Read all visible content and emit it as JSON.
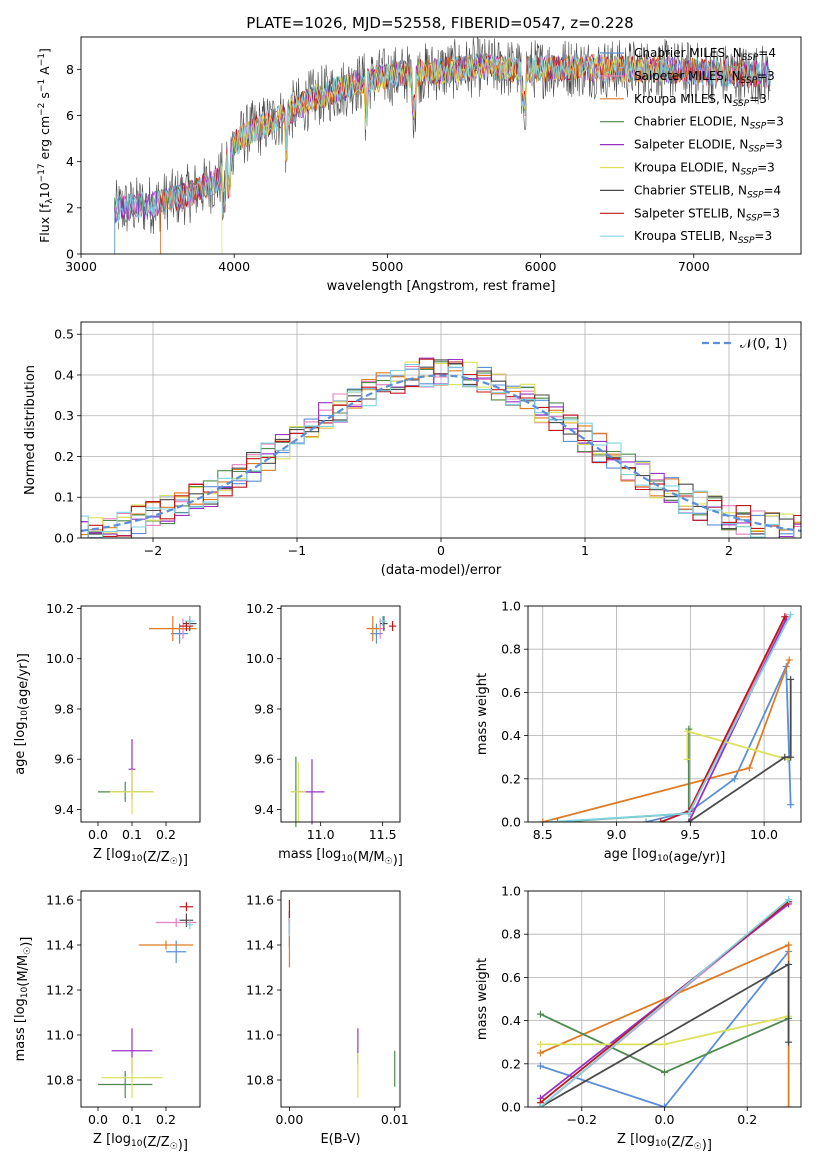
{
  "figure_title": "PLATE=1026, MJD=52558, FIBERID=0547, z=0.228",
  "legend_entries": [
    {
      "name": "Chabrier MILES, N",
      "sub": "SSP",
      "tail": "=4",
      "color": "#5b8fd6"
    },
    {
      "name": "Salpeter MILES, N",
      "sub": "SSP",
      "tail": "=3",
      "color": "#e87fbf"
    },
    {
      "name": "Kroupa MILES, N",
      "sub": "SSP",
      "tail": "=3",
      "color": "#e07b25"
    },
    {
      "name": "Chabrier ELODIE, N",
      "sub": "SSP",
      "tail": "=3",
      "color": "#4e8a4e"
    },
    {
      "name": "Salpeter ELODIE, N",
      "sub": "SSP",
      "tail": "=3",
      "color": "#9b30c8"
    },
    {
      "name": "Kroupa ELODIE, N",
      "sub": "SSP",
      "tail": "=3",
      "color": "#dde05a"
    },
    {
      "name": "Chabrier STELIB, N",
      "sub": "SSP",
      "tail": "=4",
      "color": "#4a4a4a"
    },
    {
      "name": "Salpeter STELIB, N",
      "sub": "SSP",
      "tail": "=3",
      "color": "#c01818"
    },
    {
      "name": "Kroupa STELIB, N",
      "sub": "SSP",
      "tail": "=3",
      "color": "#7fd3e0"
    }
  ],
  "chart_data": [
    {
      "id": "spectrum",
      "type": "line",
      "xlabel": "wavelength [Angstrom, rest frame]",
      "ylabel_main": "Flux [f",
      "ylabel_sub": "λ",
      "ylabel_rest": "10",
      "ylabel_exp": "−17",
      "ylabel_units": " erg cm",
      "ylabel_exp2": "−2",
      "ylabel_units2": " s",
      "ylabel_exp3": "−1",
      "ylabel_units3": " A",
      "ylabel_exp4": "−1",
      "ylabel_close": "]",
      "xlim": [
        3000,
        7700
      ],
      "ylim": [
        0,
        9.4
      ],
      "xticks": [
        3000,
        4000,
        5000,
        6000,
        7000
      ],
      "yticks": [
        0,
        2,
        4,
        6,
        8
      ],
      "continuum": {
        "x": [
          3220,
          3300,
          3500,
          3700,
          3900,
          4000,
          4100,
          4300,
          4500,
          4800,
          5000,
          5300,
          5600,
          5900,
          6200,
          6500,
          6800,
          7000,
          7300,
          7500
        ],
        "y": [
          1.9,
          2.0,
          2.2,
          2.6,
          3.2,
          4.8,
          5.3,
          5.9,
          6.7,
          7.4,
          7.7,
          7.9,
          8.1,
          8.0,
          8.1,
          8.0,
          8.0,
          7.9,
          7.8,
          7.8
        ]
      },
      "noise_amplitude": 0.6
    },
    {
      "id": "residuals",
      "type": "histogram",
      "xlabel": "(data-model)/error",
      "ylabel": "Normed distribution",
      "xlim": [
        -2.5,
        2.5
      ],
      "ylim": [
        0,
        0.53
      ],
      "xticks": [
        -2,
        -1,
        0,
        1,
        2
      ],
      "xticklabels": [
        "−2",
        "−1",
        "0",
        "1",
        "2"
      ],
      "yticks": [
        0.0,
        0.1,
        0.2,
        0.3,
        0.4,
        0.5
      ],
      "yticklabels": [
        "0.0",
        "0.1",
        "0.2",
        "0.3",
        "0.4",
        "0.5"
      ],
      "grid": true,
      "bin_width": 0.1,
      "legend_label": "𝒩(0, 1)",
      "legend_position": "top-right",
      "reference_color": "#5b8fd6"
    },
    {
      "id": "Z-age",
      "type": "scatter",
      "xlabel": "Z [log10(Z/Z☉)]",
      "ylabel": "age  [log10(age/yr)]",
      "xlim": [
        -0.05,
        0.3
      ],
      "ylim": [
        9.35,
        10.21
      ],
      "xticks": [
        0.0,
        0.1,
        0.2
      ],
      "xticklabels": [
        "0.0",
        "0.1",
        "0.2"
      ],
      "yticks": [
        9.4,
        9.6,
        9.8,
        10.0,
        10.2
      ],
      "yticklabels": [
        "9.4",
        "9.6",
        "9.8",
        "10.0",
        "10.2"
      ],
      "points": [
        {
          "s": 0,
          "x": 0.24,
          "y": 10.1,
          "ex": 0.025,
          "ey": 0.04
        },
        {
          "s": 1,
          "x": 0.25,
          "y": 10.12,
          "ex": 0.02,
          "ey": 0.04
        },
        {
          "s": 2,
          "x": 0.22,
          "y": 10.12,
          "ex": 0.07,
          "ey": 0.05
        },
        {
          "s": 3,
          "x": 0.08,
          "y": 9.47,
          "ex": 0.08,
          "ey": 0.04
        },
        {
          "s": 4,
          "x": 0.1,
          "y": 9.56,
          "ex": 0.01,
          "ey": 0.12
        },
        {
          "s": 5,
          "x": 0.1,
          "y": 9.47,
          "ex": 0.065,
          "ey": 0.09
        },
        {
          "s": 6,
          "x": 0.27,
          "y": 10.14,
          "ex": 0.02,
          "ey": 0.03
        },
        {
          "s": 7,
          "x": 0.26,
          "y": 10.13,
          "ex": 0.02,
          "ey": 0.02
        },
        {
          "s": 8,
          "x": 0.27,
          "y": 10.15,
          "ex": 0.015,
          "ey": 0.02
        }
      ]
    },
    {
      "id": "mass-age",
      "type": "scatter",
      "xlabel": "mass [log10(M/M☉)]",
      "ylabel": "",
      "xlim": [
        10.68,
        11.64
      ],
      "ylim": [
        9.35,
        10.21
      ],
      "xticks": [
        11.0,
        11.5
      ],
      "xticklabels": [
        "11.0",
        "11.5"
      ],
      "yticks": [
        9.4,
        9.6,
        9.8,
        10.0,
        10.2
      ],
      "yticklabels": [
        "9.4",
        "9.6",
        "9.8",
        "10.0",
        "10.2"
      ],
      "points": [
        {
          "s": 0,
          "x": 11.45,
          "y": 10.1,
          "ex": 0.05,
          "ey": 0.04
        },
        {
          "s": 1,
          "x": 11.48,
          "y": 10.12,
          "ex": 0.04,
          "ey": 0.04
        },
        {
          "s": 2,
          "x": 11.42,
          "y": 10.12,
          "ex": 0.05,
          "ey": 0.05
        },
        {
          "s": 3,
          "x": 10.8,
          "y": 9.47,
          "ex": 0.04,
          "ey": 0.14
        },
        {
          "s": 4,
          "x": 10.93,
          "y": 9.47,
          "ex": 0.1,
          "ey": 0.13
        },
        {
          "s": 5,
          "x": 10.82,
          "y": 9.47,
          "ex": 0.06,
          "ey": 0.12
        },
        {
          "s": 6,
          "x": 11.51,
          "y": 10.14,
          "ex": 0.03,
          "ey": 0.03
        },
        {
          "s": 7,
          "x": 11.58,
          "y": 10.13,
          "ex": 0.03,
          "ey": 0.02
        },
        {
          "s": 8,
          "x": 11.5,
          "y": 10.15,
          "ex": 0.03,
          "ey": 0.02
        }
      ]
    },
    {
      "id": "age-weight",
      "type": "line",
      "xlabel": "age  [log10(age/yr)]",
      "ylabel": "mass weight",
      "xlim": [
        8.4,
        10.25
      ],
      "ylim": [
        0,
        1.0
      ],
      "xticks": [
        8.5,
        9.0,
        9.5,
        10.0
      ],
      "xticklabels": [
        "8.5",
        "9.0",
        "9.5",
        "10.0"
      ],
      "yticks": [
        0,
        0.2,
        0.4,
        0.6,
        0.8,
        1.0
      ],
      "yticklabels": [
        "0.0",
        "0.2",
        "0.4",
        "0.6",
        "0.8",
        "1.0"
      ],
      "grid": true,
      "series": [
        {
          "s": 0,
          "x": [
            9.2,
            9.5,
            9.8,
            10.15,
            10.18
          ],
          "y": [
            0.0,
            0.05,
            0.2,
            0.72,
            0.08
          ]
        },
        {
          "s": 1,
          "x": [
            9.5,
            10.15
          ],
          "y": [
            0.05,
            0.95
          ]
        },
        {
          "s": 2,
          "x": [
            8.5,
            9.9,
            10.17
          ],
          "y": [
            0.0,
            0.25,
            0.75
          ]
        },
        {
          "s": 3,
          "x": [
            8.6,
            9.49,
            9.49
          ],
          "y": [
            0.0,
            0.04,
            0.43
          ]
        },
        {
          "s": 4,
          "x": [
            9.49,
            10.15
          ],
          "y": [
            0.0,
            0.94
          ]
        },
        {
          "s": 5,
          "x": [
            9.48,
            9.48,
            10.16
          ],
          "y": [
            0.29,
            0.42,
            0.29
          ]
        },
        {
          "s": 6,
          "x": [
            9.49,
            10.14,
            10.18,
            10.18
          ],
          "y": [
            0.0,
            0.3,
            0.3,
            0.66
          ]
        },
        {
          "s": 7,
          "x": [
            9.3,
            9.49,
            10.14
          ],
          "y": [
            0.0,
            0.05,
            0.95
          ]
        },
        {
          "s": 8,
          "x": [
            8.55,
            9.49,
            10.18
          ],
          "y": [
            0.0,
            0.04,
            0.96
          ]
        }
      ]
    },
    {
      "id": "Z-mass",
      "type": "scatter",
      "xlabel": "Z [log10(Z/Z☉)]",
      "ylabel": "mass [log10(M/M☉)]",
      "xlim": [
        -0.05,
        0.3
      ],
      "ylim": [
        10.68,
        11.64
      ],
      "xticks": [
        0.0,
        0.1,
        0.2
      ],
      "xticklabels": [
        "0.0",
        "0.1",
        "0.2"
      ],
      "yticks": [
        10.8,
        11.0,
        11.2,
        11.4,
        11.6
      ],
      "yticklabels": [
        "10.8",
        "11.0",
        "11.2",
        "11.4",
        "11.6"
      ],
      "points": [
        {
          "s": 0,
          "x": 0.23,
          "y": 11.37,
          "ex": 0.03,
          "ey": 0.05
        },
        {
          "s": 1,
          "x": 0.23,
          "y": 11.5,
          "ex": 0.06,
          "ey": 0.02
        },
        {
          "s": 2,
          "x": 0.2,
          "y": 11.4,
          "ex": 0.08,
          "ey": 0.02
        },
        {
          "s": 3,
          "x": 0.08,
          "y": 10.78,
          "ex": 0.08,
          "ey": 0.06
        },
        {
          "s": 4,
          "x": 0.1,
          "y": 10.93,
          "ex": 0.06,
          "ey": 0.1
        },
        {
          "s": 5,
          "x": 0.1,
          "y": 10.81,
          "ex": 0.09,
          "ey": 0.09
        },
        {
          "s": 6,
          "x": 0.26,
          "y": 11.51,
          "ex": 0.02,
          "ey": 0.03
        },
        {
          "s": 7,
          "x": 0.26,
          "y": 11.57,
          "ex": 0.02,
          "ey": 0.02
        },
        {
          "s": 8,
          "x": 0.27,
          "y": 11.49,
          "ex": 0.01,
          "ey": 0.02
        }
      ]
    },
    {
      "id": "ebv-mass",
      "type": "scatter",
      "xlabel": "E(B-V)",
      "ylabel": "",
      "xlim": [
        -0.0008,
        0.0105
      ],
      "ylim": [
        10.68,
        11.64
      ],
      "xticks": [
        0.0,
        0.01
      ],
      "xticklabels": [
        "0.00",
        "0.01"
      ],
      "yticks": [
        10.8,
        11.0,
        11.2,
        11.4,
        11.6
      ],
      "yticklabels": [
        "10.8",
        "11.0",
        "11.2",
        "11.4",
        "11.6"
      ],
      "points": [
        {
          "s": 0,
          "x": 0.0,
          "y": 11.45,
          "ex": 0.0,
          "ey": 0.06
        },
        {
          "s": 1,
          "x": 0.0,
          "y": 11.5,
          "ex": 0.0,
          "ey": 0.05
        },
        {
          "s": 2,
          "x": 0.0,
          "y": 11.38,
          "ex": 0.0,
          "ey": 0.08
        },
        {
          "s": 3,
          "x": 0.01,
          "y": 10.85,
          "ex": 0.0,
          "ey": 0.08
        },
        {
          "s": 4,
          "x": 0.0065,
          "y": 10.95,
          "ex": 0.0,
          "ey": 0.08
        },
        {
          "s": 5,
          "x": 0.0065,
          "y": 10.82,
          "ex": 0.0,
          "ey": 0.1
        },
        {
          "s": 6,
          "x": 0.0,
          "y": 11.5,
          "ex": 0.0,
          "ey": 0.05
        },
        {
          "s": 7,
          "x": 0.0,
          "y": 11.55,
          "ex": 0.0,
          "ey": 0.05
        },
        {
          "s": 8,
          "x": 0.0,
          "y": 11.48,
          "ex": 0.0,
          "ey": 0.04
        }
      ]
    },
    {
      "id": "Z-weight",
      "type": "line",
      "xlabel": "Z [log10(Z/Z☉)]",
      "ylabel": "mass weight",
      "xlim": [
        -0.33,
        0.33
      ],
      "ylim": [
        0,
        1.0
      ],
      "xticks": [
        -0.2,
        0.0,
        0.2
      ],
      "xticklabels": [
        "−0.2",
        "0.0",
        "0.2"
      ],
      "yticks": [
        0,
        0.2,
        0.4,
        0.6,
        0.8,
        1.0
      ],
      "yticklabels": [
        "0.0",
        "0.2",
        "0.4",
        "0.6",
        "0.8",
        "1.0"
      ],
      "grid": true,
      "series": [
        {
          "s": 0,
          "x": [
            -0.3,
            0.0,
            0.3
          ],
          "y": [
            0.19,
            0.0,
            0.72
          ]
        },
        {
          "s": 1,
          "x": [
            -0.3,
            0.3
          ],
          "y": [
            0.0,
            0.95
          ]
        },
        {
          "s": 2,
          "x": [
            -0.3,
            0.3,
            0.3
          ],
          "y": [
            0.25,
            0.75,
            0.0
          ]
        },
        {
          "s": 3,
          "x": [
            -0.3,
            0.0,
            0.3
          ],
          "y": [
            0.43,
            0.16,
            0.41
          ]
        },
        {
          "s": 4,
          "x": [
            -0.3,
            0.3
          ],
          "y": [
            0.04,
            0.94
          ]
        },
        {
          "s": 5,
          "x": [
            -0.3,
            0.0,
            0.3
          ],
          "y": [
            0.29,
            0.29,
            0.42
          ]
        },
        {
          "s": 6,
          "x": [
            -0.3,
            0.3,
            0.3
          ],
          "y": [
            0.0,
            0.66,
            0.3
          ]
        },
        {
          "s": 7,
          "x": [
            -0.3,
            0.3
          ],
          "y": [
            0.02,
            0.95
          ]
        },
        {
          "s": 8,
          "x": [
            -0.3,
            0.3
          ],
          "y": [
            0.0,
            0.96
          ]
        }
      ]
    }
  ]
}
